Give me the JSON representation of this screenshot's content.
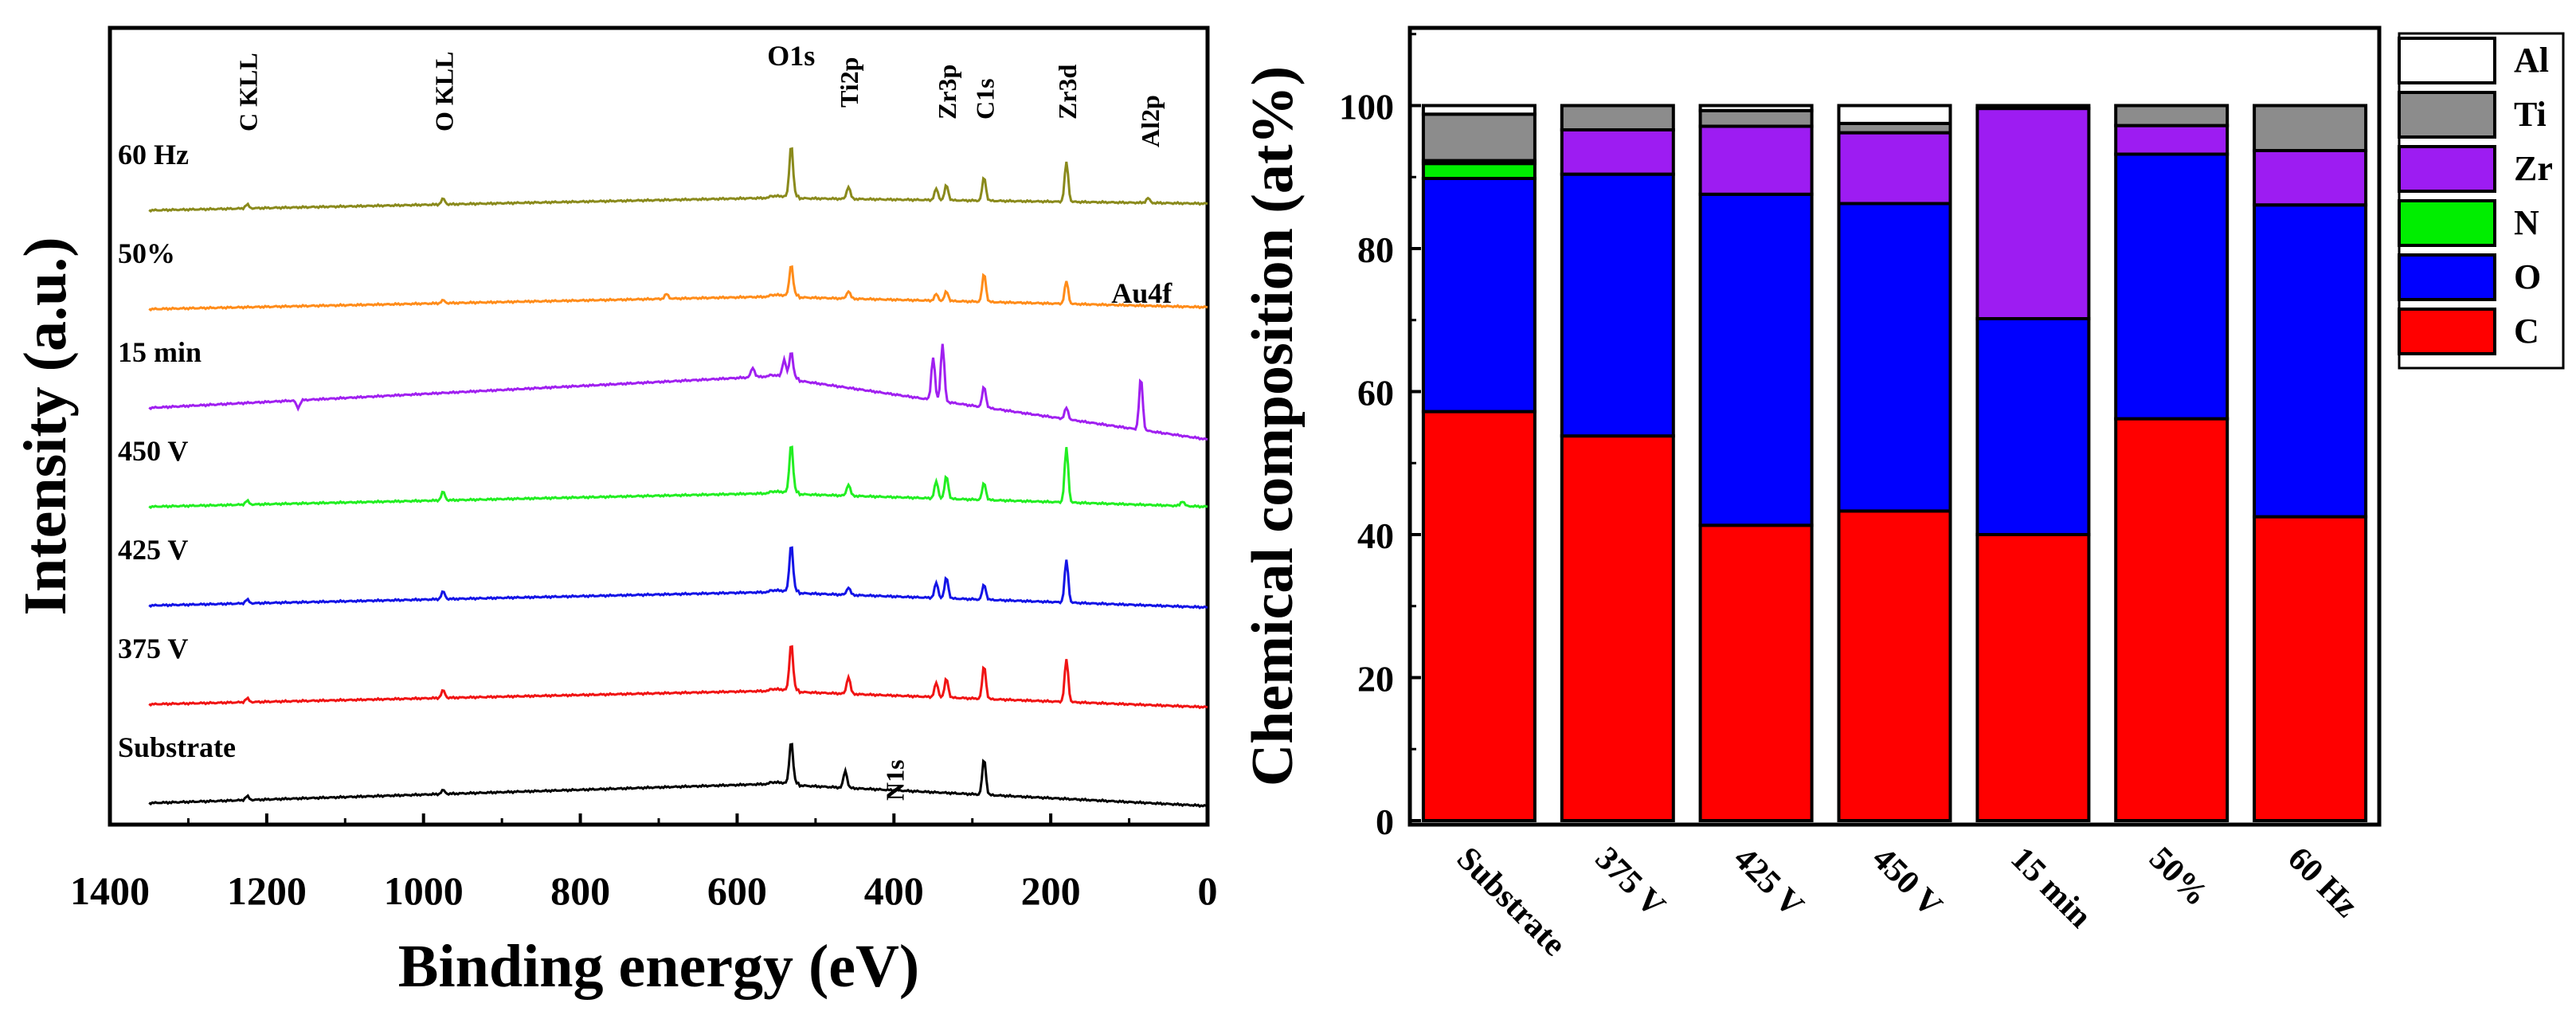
{
  "chart_data": [
    {
      "type": "line",
      "title": "",
      "xlabel": "Binding energy (eV)",
      "ylabel": "Intensity (a.u.)",
      "xlim": [
        1400,
        0
      ],
      "xticks": [
        1400,
        1200,
        1000,
        800,
        600,
        400,
        200,
        0
      ],
      "series": [
        {
          "name": "60 Hz",
          "color": "#8a8a1c",
          "offset": 6,
          "base_start": 0.0,
          "base_peak": 0.13,
          "base_end": 0.07,
          "peaks": [
            [
              1225,
              0.04
            ],
            [
              975,
              0.06
            ],
            [
              531,
              0.55
            ],
            [
              458,
              0.13
            ],
            [
              346,
              0.12
            ],
            [
              333,
              0.16
            ],
            [
              285,
              0.25
            ],
            [
              180,
              0.42
            ],
            [
              76,
              0.05
            ]
          ]
        },
        {
          "name": "50%",
          "color": "#ff8c1a",
          "offset": 5,
          "base_start": 0.0,
          "base_peak": 0.13,
          "base_end": 0.02,
          "peaks": [
            [
              975,
              0.03
            ],
            [
              690,
              0.05
            ],
            [
              531,
              0.33
            ],
            [
              458,
              0.08
            ],
            [
              346,
              0.07
            ],
            [
              333,
              0.1
            ],
            [
              285,
              0.3
            ],
            [
              180,
              0.24
            ]
          ]
        },
        {
          "name": "15 min",
          "color": "#a020f0",
          "offset": 4,
          "base_start": 0.0,
          "base_peak": 0.33,
          "base_end": -0.33,
          "peaks": [
            [
              1160,
              -0.08
            ],
            [
              580,
              0.1
            ],
            [
              540,
              0.18
            ],
            [
              531,
              0.28
            ],
            [
              350,
              0.45
            ],
            [
              338,
              0.6
            ],
            [
              285,
              0.22
            ],
            [
              180,
              0.12
            ],
            [
              85,
              0.55
            ]
          ]
        },
        {
          "name": "450 V",
          "color": "#22ee22",
          "offset": 3,
          "base_start": 0.0,
          "base_peak": 0.14,
          "base_end": 0.0,
          "peaks": [
            [
              1225,
              0.04
            ],
            [
              975,
              0.09
            ],
            [
              531,
              0.52
            ],
            [
              458,
              0.12
            ],
            [
              346,
              0.18
            ],
            [
              333,
              0.24
            ],
            [
              285,
              0.18
            ],
            [
              180,
              0.58
            ],
            [
              32,
              0.05
            ]
          ]
        },
        {
          "name": "425 V",
          "color": "#1414e6",
          "offset": 2,
          "base_start": 0.0,
          "base_peak": 0.14,
          "base_end": -0.02,
          "peaks": [
            [
              1225,
              0.04
            ],
            [
              975,
              0.08
            ],
            [
              531,
              0.5
            ],
            [
              458,
              0.08
            ],
            [
              346,
              0.16
            ],
            [
              333,
              0.22
            ],
            [
              285,
              0.16
            ],
            [
              180,
              0.45
            ]
          ]
        },
        {
          "name": "375 V",
          "color": "#f01414",
          "offset": 1,
          "base_start": 0.0,
          "base_peak": 0.14,
          "base_end": -0.03,
          "peaks": [
            [
              1225,
              0.04
            ],
            [
              975,
              0.08
            ],
            [
              531,
              0.5
            ],
            [
              458,
              0.18
            ],
            [
              346,
              0.15
            ],
            [
              333,
              0.2
            ],
            [
              285,
              0.35
            ],
            [
              180,
              0.45
            ]
          ]
        },
        {
          "name": "Substrate",
          "color": "#000000",
          "offset": 0,
          "base_start": 0.0,
          "base_peak": 0.2,
          "base_end": -0.03,
          "peaks": [
            [
              1225,
              0.04
            ],
            [
              975,
              0.04
            ],
            [
              531,
              0.45
            ],
            [
              462,
              0.18
            ],
            [
              285,
              0.38
            ]
          ]
        }
      ],
      "peak_labels": [
        {
          "text": "C KLL",
          "x_ev": 1225
        },
        {
          "text": "O KLL",
          "x_ev": 975
        },
        {
          "text": "O1s",
          "x_ev": 531
        },
        {
          "text": "Ti2p",
          "x_ev": 458
        },
        {
          "text": "Zr3p",
          "x_ev": 333
        },
        {
          "text": "C1s",
          "x_ev": 285
        },
        {
          "text": "Zr3d",
          "x_ev": 180
        },
        {
          "text": "Al2p",
          "x_ev": 74
        },
        {
          "text": "Au4f",
          "x_ev": 84
        },
        {
          "text": "N1s",
          "x_ev": 400
        }
      ]
    },
    {
      "type": "bar",
      "stacked": true,
      "title": "",
      "xlabel": "",
      "ylabel": "Chemical composition (at%)",
      "ylim": [
        0,
        110
      ],
      "yticks": [
        0,
        20,
        40,
        60,
        80,
        100
      ],
      "categories": [
        "Substrate",
        "375 V",
        "425 V",
        "450 V",
        "15 min",
        "50%",
        "60 Hz"
      ],
      "series": [
        {
          "name": "C",
          "color": "#ff0000",
          "values": [
            57.2,
            53.8,
            41.3,
            43.3,
            40.0,
            56.2,
            42.5
          ]
        },
        {
          "name": "O",
          "color": "#0000ff",
          "values": [
            32.6,
            36.6,
            46.3,
            43.0,
            30.2,
            37.0,
            43.6
          ]
        },
        {
          "name": "N",
          "color": "#00ee00",
          "values": [
            2.1,
            0,
            0,
            0,
            0,
            0,
            0
          ]
        },
        {
          "name": "Zr",
          "color": "#9d1cf2",
          "values": [
            0.4,
            6.2,
            9.5,
            9.9,
            29.4,
            4.0,
            7.6
          ]
        },
        {
          "name": "Ti",
          "color": "#8c8c8c",
          "values": [
            6.5,
            3.4,
            2.2,
            1.3,
            0.4,
            2.8,
            6.3
          ]
        },
        {
          "name": "Al",
          "color": "#ffffff",
          "values": [
            1.2,
            0,
            0.7,
            2.5,
            0,
            0,
            0
          ]
        }
      ],
      "legend": {
        "placement": "right",
        "order": [
          "Al",
          "Ti",
          "Zr",
          "N",
          "O",
          "C"
        ]
      }
    }
  ]
}
